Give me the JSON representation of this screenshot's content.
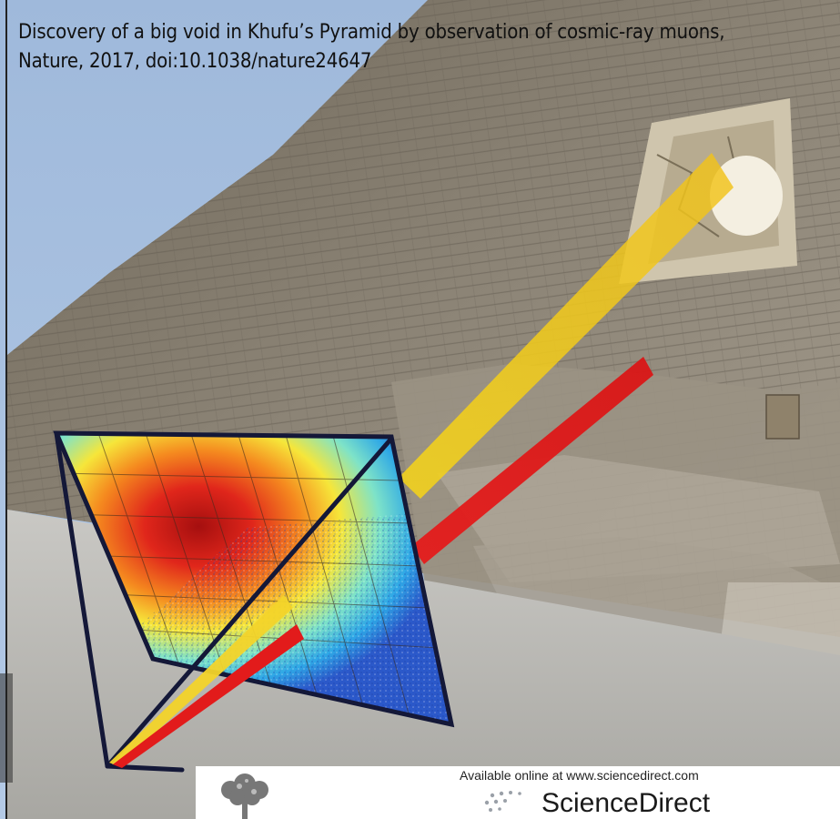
{
  "caption": {
    "line1": "Discovery of a big void in Khufu’s Pyramid by observation of cosmic-ray muons,",
    "line2": "Nature, 2017, doi:10.1038/nature24647"
  },
  "footer": {
    "available_text": "Available online at www.sciencedirect.com",
    "brand_text": "ScienceDirect"
  },
  "colors": {
    "sky": "#a8c2e2",
    "pyramid": "#8a8173",
    "ground": "#b3b2ad",
    "beam_yellow": "#f0c419",
    "beam_red": "#e31d1d",
    "frame": "#141838"
  }
}
